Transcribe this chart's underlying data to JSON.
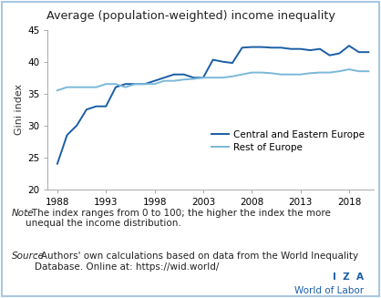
{
  "title": "Average (population-weighted) income inequality",
  "ylabel": "Gini index",
  "ylim": [
    20,
    45
  ],
  "yticks": [
    20,
    25,
    30,
    35,
    40,
    45
  ],
  "xlim": [
    1987.0,
    2020.5
  ],
  "xticks": [
    1988,
    1993,
    1998,
    2003,
    2008,
    2013,
    2018
  ],
  "cee_years": [
    1988,
    1989,
    1990,
    1991,
    1992,
    1993,
    1994,
    1995,
    1996,
    1997,
    1998,
    1999,
    2000,
    2001,
    2002,
    2003,
    2004,
    2005,
    2006,
    2007,
    2008,
    2009,
    2010,
    2011,
    2012,
    2013,
    2014,
    2015,
    2016,
    2017,
    2018,
    2019,
    2020
  ],
  "cee_values": [
    24.0,
    28.5,
    30.0,
    32.5,
    33.0,
    33.0,
    36.0,
    36.5,
    36.5,
    36.5,
    37.0,
    37.5,
    38.0,
    38.0,
    37.5,
    37.5,
    40.3,
    40.0,
    39.8,
    42.2,
    42.3,
    42.3,
    42.2,
    42.2,
    42.0,
    42.0,
    41.8,
    42.0,
    41.0,
    41.3,
    42.5,
    41.5,
    41.5
  ],
  "roe_years": [
    1988,
    1989,
    1990,
    1991,
    1992,
    1993,
    1994,
    1995,
    1996,
    1997,
    1998,
    1999,
    2000,
    2001,
    2002,
    2003,
    2004,
    2005,
    2006,
    2007,
    2008,
    2009,
    2010,
    2011,
    2012,
    2013,
    2014,
    2015,
    2016,
    2017,
    2018,
    2019,
    2020
  ],
  "roe_values": [
    35.5,
    36.0,
    36.0,
    36.0,
    36.0,
    36.5,
    36.5,
    36.0,
    36.5,
    36.5,
    36.5,
    37.0,
    37.0,
    37.2,
    37.3,
    37.5,
    37.5,
    37.5,
    37.7,
    38.0,
    38.3,
    38.3,
    38.2,
    38.0,
    38.0,
    38.0,
    38.2,
    38.3,
    38.3,
    38.5,
    38.8,
    38.5,
    38.5
  ],
  "cee_color": "#1a5da6",
  "roe_color": "#7ab8d9",
  "cee_label": "Central and Eastern Europe",
  "roe_label": "Rest of Europe",
  "note_italic": "Note",
  "note_rest": ": The index ranges from 0 to 100; the higher the index the more\nunequal the income distribution.",
  "source_italic": "Source",
  "source_rest": ": Authors' own calculations based on data from the World Inequality\nDatabase. Online at: https://wid.world/",
  "iza_text": "I  Z  A",
  "wol_text": "World of Labor",
  "border_color": "#a8c8e0",
  "fig_bg": "#ffffff"
}
